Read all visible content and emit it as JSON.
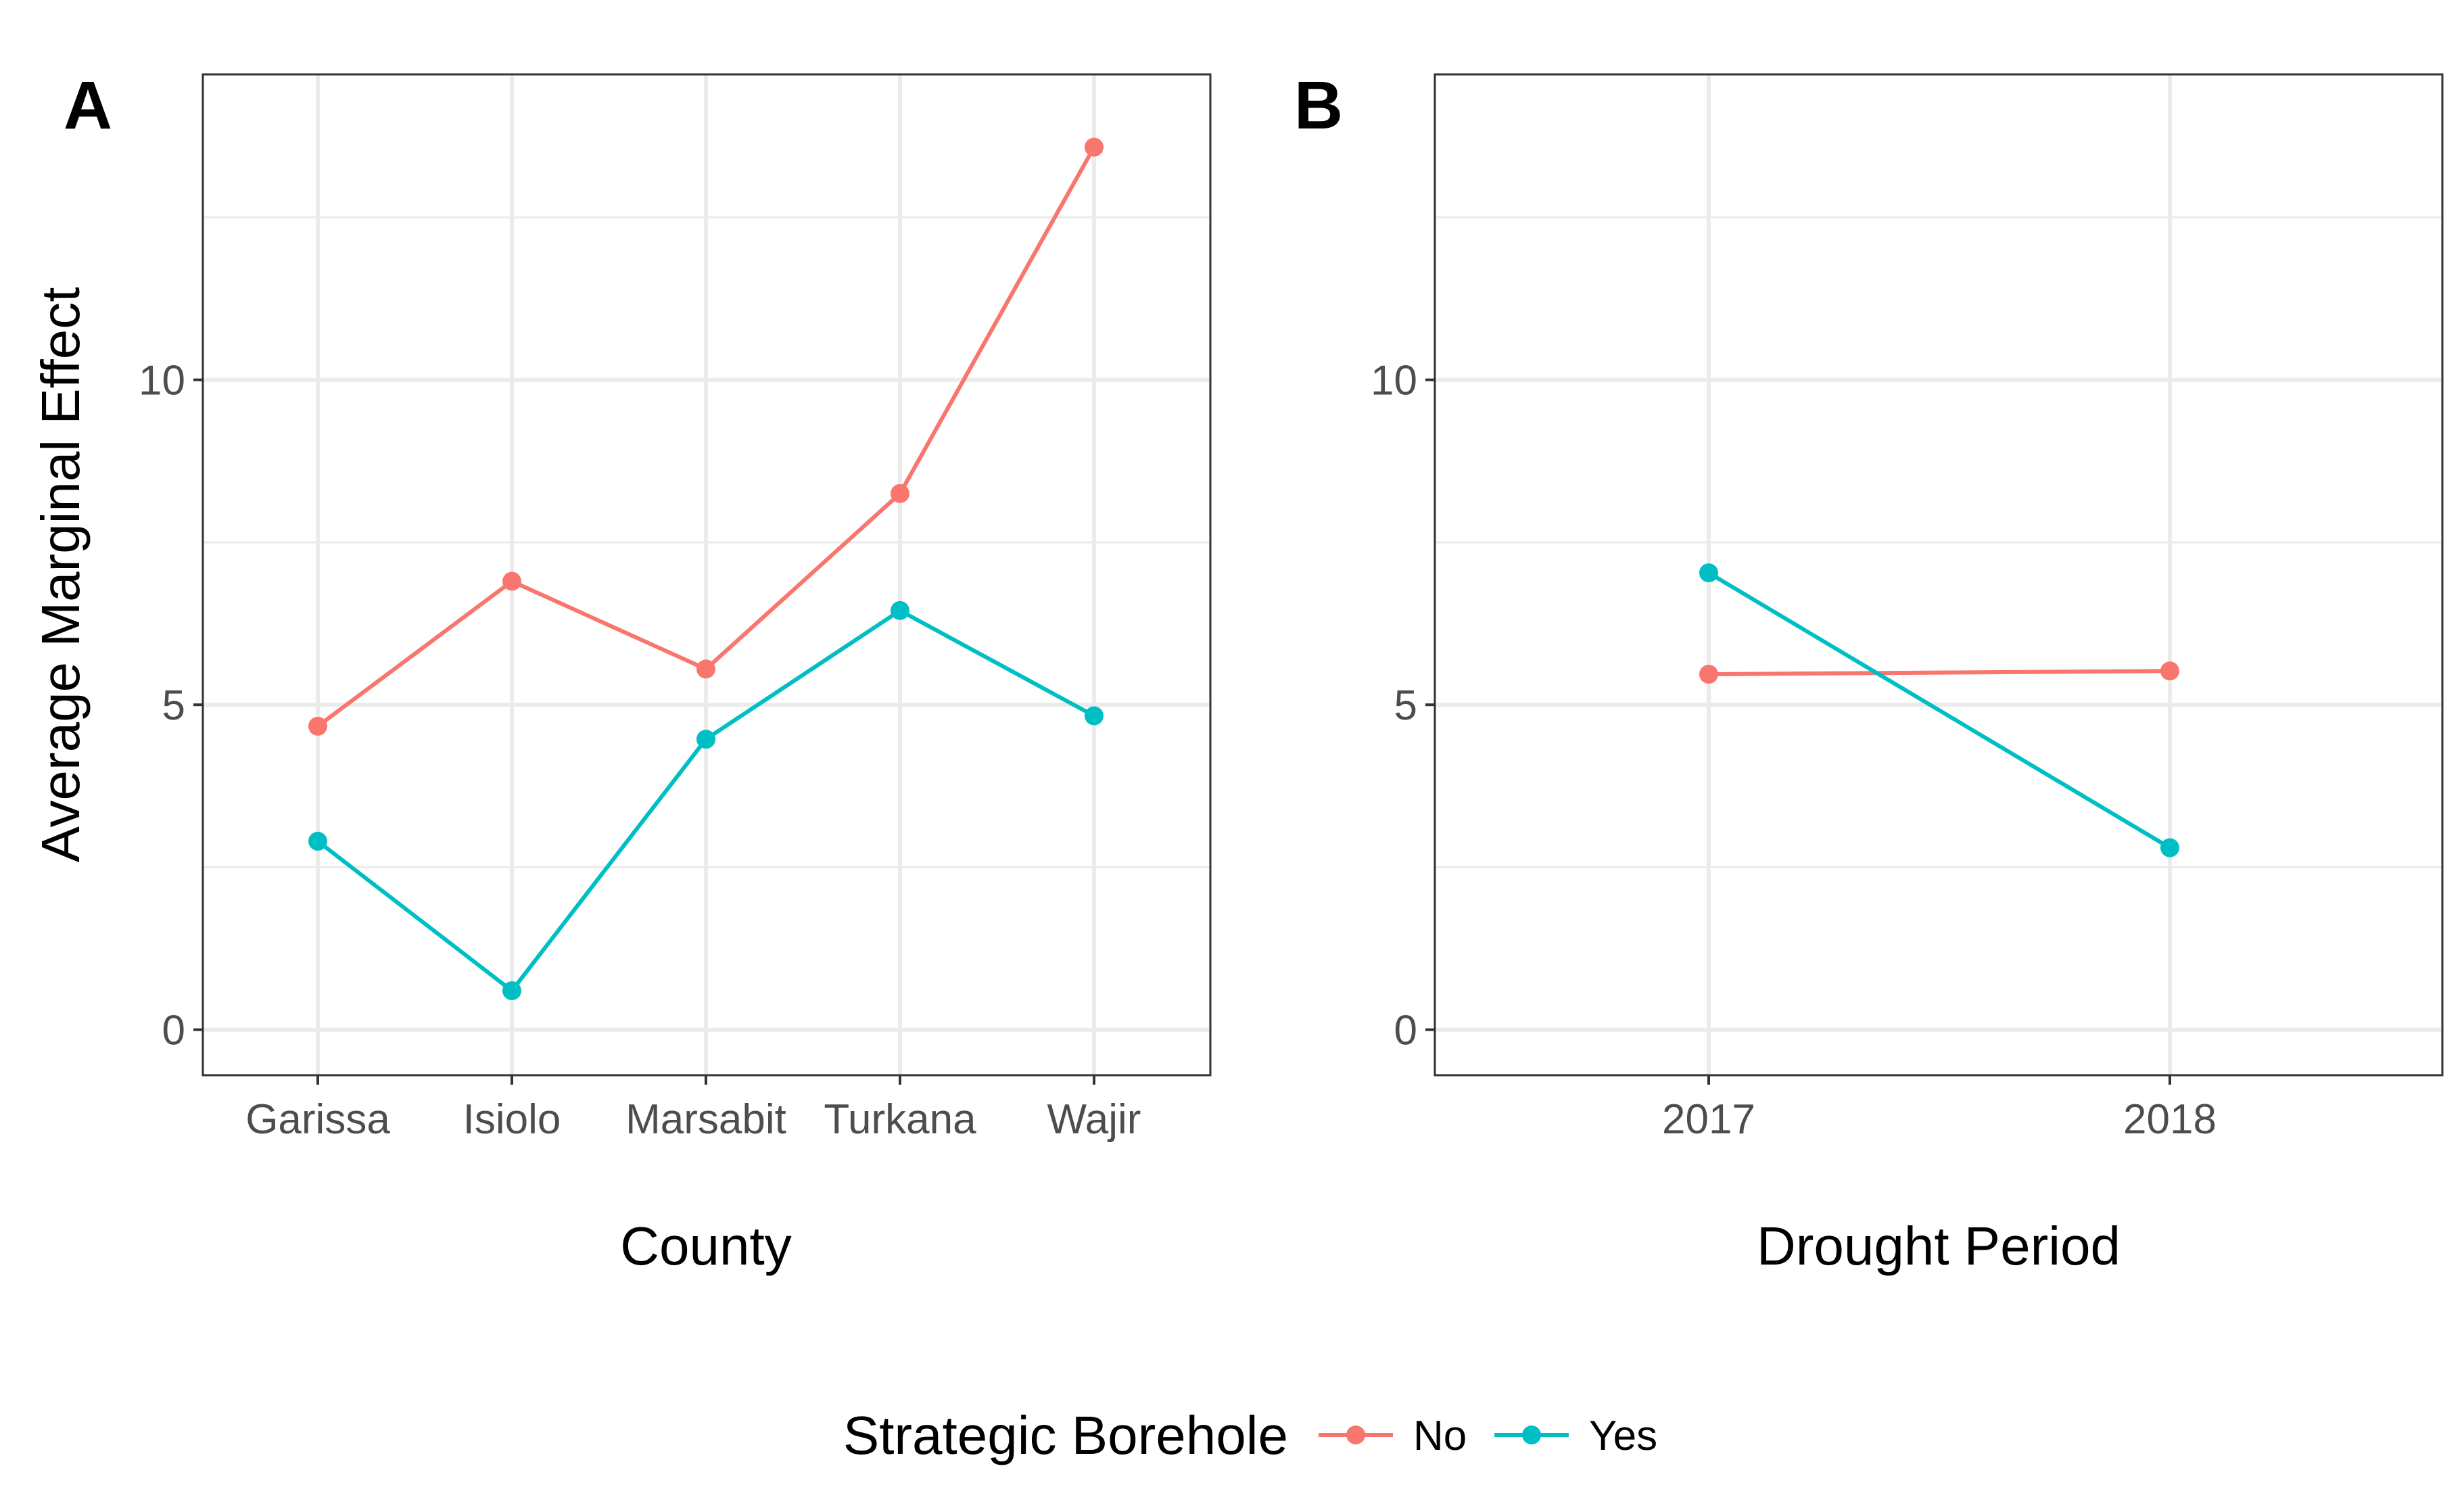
{
  "legend": {
    "title": "Strategic Borehole",
    "entries": [
      {
        "name": "No",
        "color": "#F8766D"
      },
      {
        "name": "Yes",
        "color": "#00BFC4"
      }
    ],
    "position": "bottom"
  },
  "chart_data": [
    {
      "type": "line",
      "panel_label": "A",
      "title": "",
      "xlabel": "County",
      "ylabel": "Average Marginal Effect",
      "categories": [
        "Garissa",
        "Isiolo",
        "Marsabit",
        "Turkana",
        "Wajir"
      ],
      "ylim": [
        -0.7,
        14.7
      ],
      "yticks": [
        0,
        5,
        10
      ],
      "yminor": [
        2.5,
        7.5,
        12.5
      ],
      "grid": true,
      "series": [
        {
          "name": "No",
          "color": "#F8766D",
          "values": [
            4.67,
            6.9,
            5.55,
            8.25,
            13.58
          ]
        },
        {
          "name": "Yes",
          "color": "#00BFC4",
          "values": [
            2.9,
            0.6,
            4.47,
            6.45,
            4.83
          ]
        }
      ]
    },
    {
      "type": "line",
      "panel_label": "B",
      "title": "",
      "xlabel": "Drought Period",
      "ylabel": "",
      "categories": [
        "2017",
        "2018"
      ],
      "ylim": [
        -0.7,
        14.7
      ],
      "yticks": [
        0,
        5,
        10
      ],
      "yminor": [
        2.5,
        7.5,
        12.5
      ],
      "grid": true,
      "series": [
        {
          "name": "No",
          "color": "#F8766D",
          "values": [
            5.47,
            5.52
          ]
        },
        {
          "name": "Yes",
          "color": "#00BFC4",
          "values": [
            7.03,
            2.8
          ]
        }
      ]
    }
  ]
}
